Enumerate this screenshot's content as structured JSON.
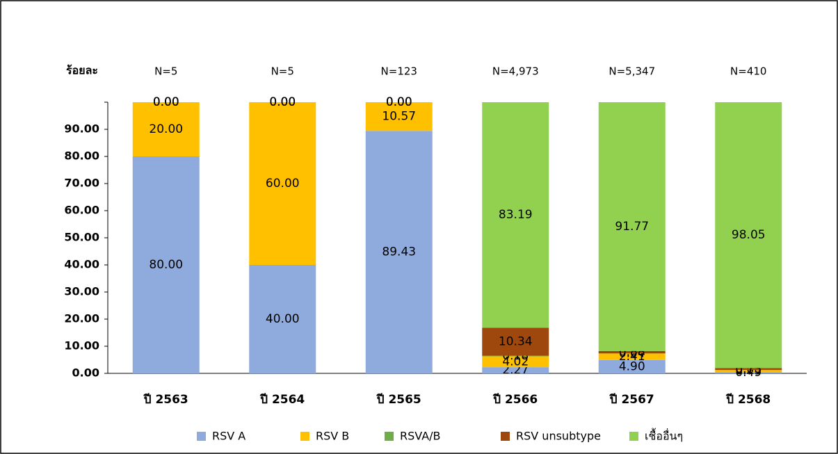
{
  "chart_data": {
    "type": "stacked_bar",
    "y_label": "ร้อยละ",
    "categories": [
      "ปี 2563",
      "ปี 2564",
      "ปี 2565",
      "ปี 2566",
      "ปี 2567",
      "ปี 2568"
    ],
    "annotations": [
      "N=5",
      "N=5",
      "N=123",
      "N=4,973",
      "N=5,347",
      "N=410"
    ],
    "series": [
      {
        "name": "RSV A",
        "color": "#8faadc",
        "values": [
          80,
          40,
          89.43,
          2.27,
          4.9,
          0.49
        ],
        "value_labels": [
          "80.00",
          "40.00",
          "89.43",
          "2.27",
          "4.90",
          "0.49"
        ]
      },
      {
        "name": "RSV B",
        "color": "#ffc000",
        "values": [
          20,
          60,
          10.57,
          4.02,
          2.41,
          0.73
        ],
        "value_labels": [
          "20.00",
          "60.00",
          "10.57",
          "4.02",
          "2.41",
          "0.73"
        ]
      },
      {
        "name": "RSVA/B",
        "color": "#70ad47",
        "values": [
          0,
          0,
          0,
          0.18,
          0.04,
          0
        ],
        "value_labels": [
          "0.00",
          "0.00",
          "0.00",
          "0.18",
          "0.04",
          "0.00"
        ]
      },
      {
        "name": "RSV unsubtype",
        "color": "#9e480e",
        "values": [
          0,
          0,
          0,
          10.34,
          0.88,
          0.73
        ],
        "value_labels": [
          "0.00",
          "0.00",
          "0.00",
          "10.34",
          "0.88",
          "0.73"
        ]
      },
      {
        "name": "เชื้ออื่นๆ",
        "color": "#92d050",
        "values": [
          0,
          0,
          0,
          83.19,
          91.77,
          98.05
        ],
        "value_labels": [
          "0.00",
          "0.00",
          "0.00",
          "83.19",
          "91.77",
          "98.05"
        ]
      }
    ],
    "ylim": [
      0,
      100
    ],
    "yticks": [
      {
        "value": 0,
        "label": "0.00"
      },
      {
        "value": 10,
        "label": "10.00"
      },
      {
        "value": 20,
        "label": "20.00"
      },
      {
        "value": 30,
        "label": "30.00"
      },
      {
        "value": 40,
        "label": "40.00"
      },
      {
        "value": 50,
        "label": "50.00"
      },
      {
        "value": 60,
        "label": "60.00"
      },
      {
        "value": 70,
        "label": "70.00"
      },
      {
        "value": 80,
        "label": "80.00"
      },
      {
        "value": 90,
        "label": "90.00"
      },
      {
        "value": 100,
        "label": {
          "_": null
        }
      }
    ],
    "legend": "bottom"
  }
}
